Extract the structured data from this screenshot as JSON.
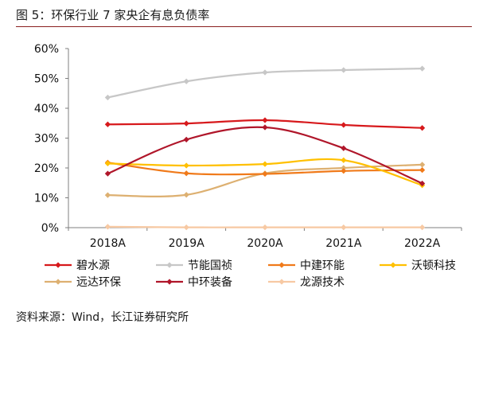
{
  "figure": {
    "title": "图  5：环保行业 7 家央企有息负债率",
    "source": "资料来源：Wind，长江证券研究所"
  },
  "chart_data": {
    "type": "line",
    "categories": [
      "2018A",
      "2019A",
      "2020A",
      "2021A",
      "2022A"
    ],
    "ylim": [
      0,
      60
    ],
    "yticks": [
      0,
      10,
      20,
      30,
      40,
      50,
      60
    ],
    "ytick_labels": [
      "0%",
      "10%",
      "20%",
      "30%",
      "40%",
      "50%",
      "60%"
    ],
    "grid": false,
    "legend_position": "bottom",
    "smooth": true,
    "series": [
      {
        "name": "碧水源",
        "color": "#d7191c",
        "values": [
          34.6,
          34.9,
          36.0,
          34.4,
          33.4
        ]
      },
      {
        "name": "节能国祯",
        "color": "#c7c7c7",
        "values": [
          43.6,
          49.0,
          52.0,
          52.8,
          53.3
        ]
      },
      {
        "name": "中建环能",
        "color": "#f07a1a",
        "values": [
          21.8,
          18.2,
          18.0,
          19.0,
          19.3
        ]
      },
      {
        "name": "沃顿科技",
        "color": "#ffc000",
        "values": [
          21.5,
          20.8,
          21.3,
          22.6,
          14.2
        ]
      },
      {
        "name": "远达环保",
        "color": "#ddb071",
        "values": [
          10.9,
          11.0,
          18.2,
          20.0,
          21.1
        ]
      },
      {
        "name": "中环装备",
        "color": "#b0162a",
        "values": [
          18.1,
          29.5,
          33.6,
          26.6,
          14.8
        ]
      },
      {
        "name": "龙源技术",
        "color": "#f7c9a3",
        "values": [
          0.3,
          0.1,
          0.1,
          0.1,
          0.1
        ]
      }
    ]
  }
}
